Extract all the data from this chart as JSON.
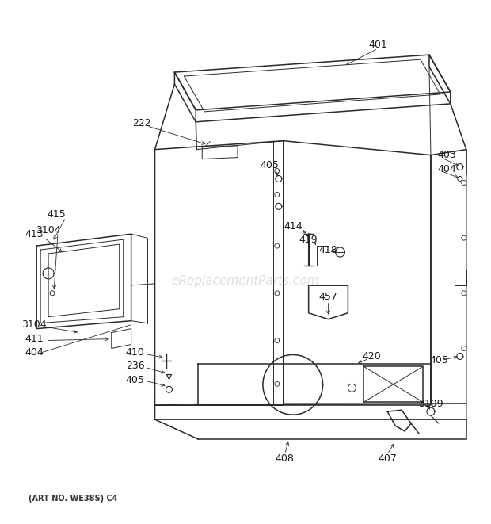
{
  "bg_color": "#ffffff",
  "line_color": "#2a2a2a",
  "label_color": "#1a1a1a",
  "watermark": "eReplacementParts.com",
  "watermark_color": "#c8c8c8",
  "footer": "(ART NO. WE38S) C4",
  "figw": 6.2,
  "figh": 6.61,
  "dpi": 100
}
